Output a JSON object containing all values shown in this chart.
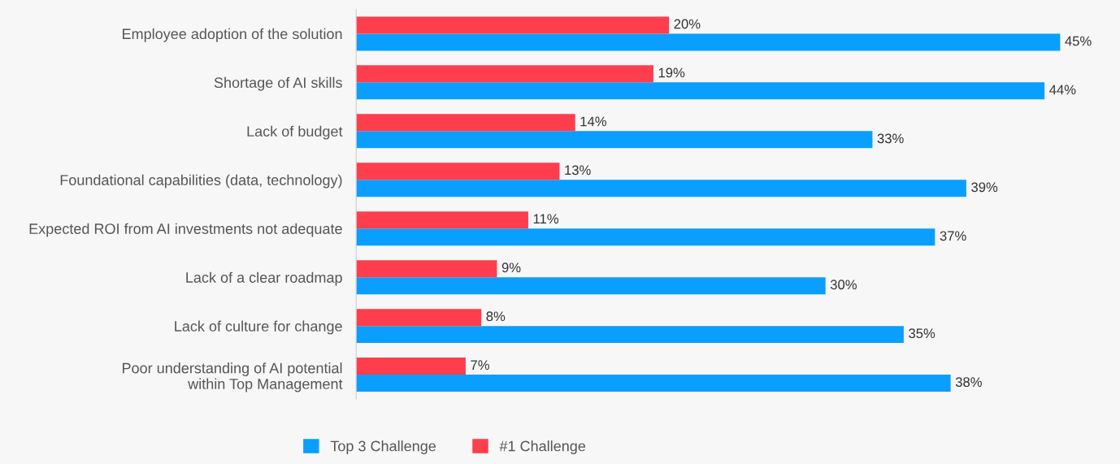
{
  "chart_data": {
    "type": "bar",
    "orientation": "horizontal",
    "categories": [
      "Employee adoption of the solution",
      "Shortage of AI skills",
      "Lack of budget",
      "Foundational capabilities (data, technology)",
      "Expected ROI from AI investments not adequate",
      "Lack of a clear roadmap",
      "Lack of culture for change",
      "Poor understanding of AI potential\nwithin Top Management"
    ],
    "series": [
      {
        "name": "Top 3 Challenge",
        "color": "#0a9eff",
        "values": [
          45,
          44,
          33,
          39,
          37,
          30,
          35,
          38
        ],
        "value_labels": [
          "45%",
          "44%",
          "33%",
          "39%",
          "37%",
          "30%",
          "35%",
          "38%"
        ]
      },
      {
        "name": "#1 Challenge",
        "color": "#ff3e4d",
        "values": [
          20,
          19,
          14,
          13,
          11,
          9,
          8,
          7
        ],
        "value_labels": [
          "20%",
          "19%",
          "14%",
          "13%",
          "11%",
          "9%",
          "8%",
          "7%"
        ]
      }
    ],
    "legend": "bottom",
    "grid": false,
    "tick_labels": "y"
  }
}
